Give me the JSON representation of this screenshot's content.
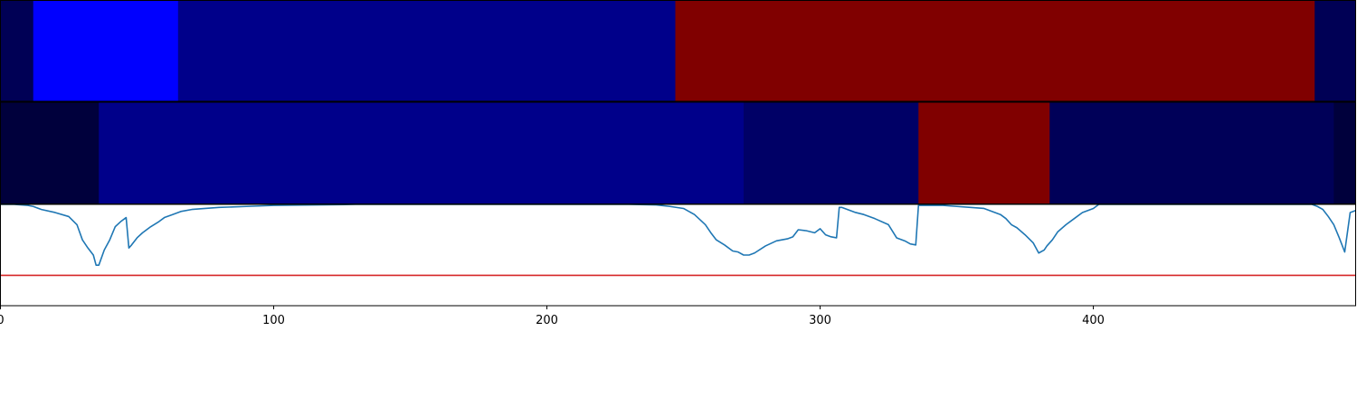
{
  "chart_data": [
    {
      "type": "heatmap",
      "panel": "top",
      "xlim": [
        0,
        496
      ],
      "segments": [
        {
          "start": 0,
          "end": 12,
          "color": "#000055"
        },
        {
          "start": 12,
          "end": 65,
          "color": "#0000ff"
        },
        {
          "start": 65,
          "end": 247,
          "color": "#00008a"
        },
        {
          "start": 247,
          "end": 481,
          "color": "#800000"
        },
        {
          "start": 481,
          "end": 496,
          "color": "#000055"
        }
      ]
    },
    {
      "type": "heatmap",
      "panel": "middle",
      "xlim": [
        0,
        496
      ],
      "segments": [
        {
          "start": 0,
          "end": 36,
          "color": "#00003c"
        },
        {
          "start": 36,
          "end": 272,
          "color": "#00008a"
        },
        {
          "start": 272,
          "end": 336,
          "color": "#000066"
        },
        {
          "start": 336,
          "end": 384,
          "color": "#800000"
        },
        {
          "start": 384,
          "end": 488,
          "color": "#000058"
        },
        {
          "start": 488,
          "end": 496,
          "color": "#00003c"
        }
      ]
    },
    {
      "type": "line",
      "panel": "bottom",
      "xlim": [
        0,
        496
      ],
      "ylim": [
        -1.0,
        0.0
      ],
      "xticks": [
        "0",
        "100",
        "200",
        "300",
        "400"
      ],
      "xtick_values": [
        0,
        100,
        200,
        300,
        400
      ],
      "threshold": {
        "value": -0.7,
        "color": "#d62728"
      },
      "series": [
        {
          "color": "#1f77b4",
          "x": [
            0,
            5,
            10,
            12,
            15,
            20,
            25,
            28,
            30,
            32,
            34,
            35,
            36,
            38,
            40,
            42,
            44,
            46,
            47,
            48,
            50,
            52,
            55,
            58,
            60,
            63,
            66,
            70,
            75,
            80,
            90,
            100,
            130,
            160,
            200,
            230,
            240,
            245,
            250,
            254,
            258,
            260,
            262,
            265,
            268,
            270,
            272,
            274,
            276,
            280,
            284,
            288,
            290,
            292,
            295,
            298,
            300,
            302,
            304,
            306,
            307,
            308,
            310,
            313,
            316,
            320,
            325,
            328,
            331,
            333,
            335,
            336,
            337,
            340,
            345,
            350,
            355,
            360,
            363,
            366,
            368,
            370,
            372,
            375,
            378,
            380,
            382,
            383,
            384,
            385,
            387,
            390,
            393,
            396,
            400,
            402,
            480,
            482,
            484,
            486,
            488,
            490,
            492,
            494,
            496
          ],
          "y": [
            0,
            0,
            -0.01,
            -0.02,
            -0.05,
            -0.08,
            -0.12,
            -0.2,
            -0.35,
            -0.43,
            -0.5,
            -0.6,
            -0.6,
            -0.45,
            -0.35,
            -0.22,
            -0.17,
            -0.13,
            -0.43,
            -0.4,
            -0.33,
            -0.28,
            -0.22,
            -0.17,
            -0.13,
            -0.1,
            -0.07,
            -0.05,
            -0.04,
            -0.03,
            -0.02,
            -0.01,
            0,
            0,
            0,
            0,
            -0.005,
            -0.02,
            -0.04,
            -0.1,
            -0.2,
            -0.28,
            -0.35,
            -0.4,
            -0.46,
            -0.47,
            -0.5,
            -0.5,
            -0.48,
            -0.41,
            -0.36,
            -0.34,
            -0.32,
            -0.25,
            -0.26,
            -0.28,
            -0.24,
            -0.3,
            -0.32,
            -0.33,
            -0.03,
            -0.03,
            -0.05,
            -0.08,
            -0.1,
            -0.14,
            -0.2,
            -0.33,
            -0.36,
            -0.39,
            -0.4,
            -0.01,
            -0.01,
            -0.01,
            -0.01,
            -0.02,
            -0.03,
            -0.04,
            -0.07,
            -0.1,
            -0.14,
            -0.2,
            -0.23,
            -0.3,
            -0.38,
            -0.48,
            -0.45,
            -0.41,
            -0.38,
            -0.35,
            -0.27,
            -0.2,
            -0.14,
            -0.08,
            -0.04,
            0,
            0,
            -0.02,
            -0.05,
            -0.12,
            -0.2,
            -0.33,
            -0.47,
            -0.08,
            -0.06
          ]
        }
      ]
    }
  ]
}
